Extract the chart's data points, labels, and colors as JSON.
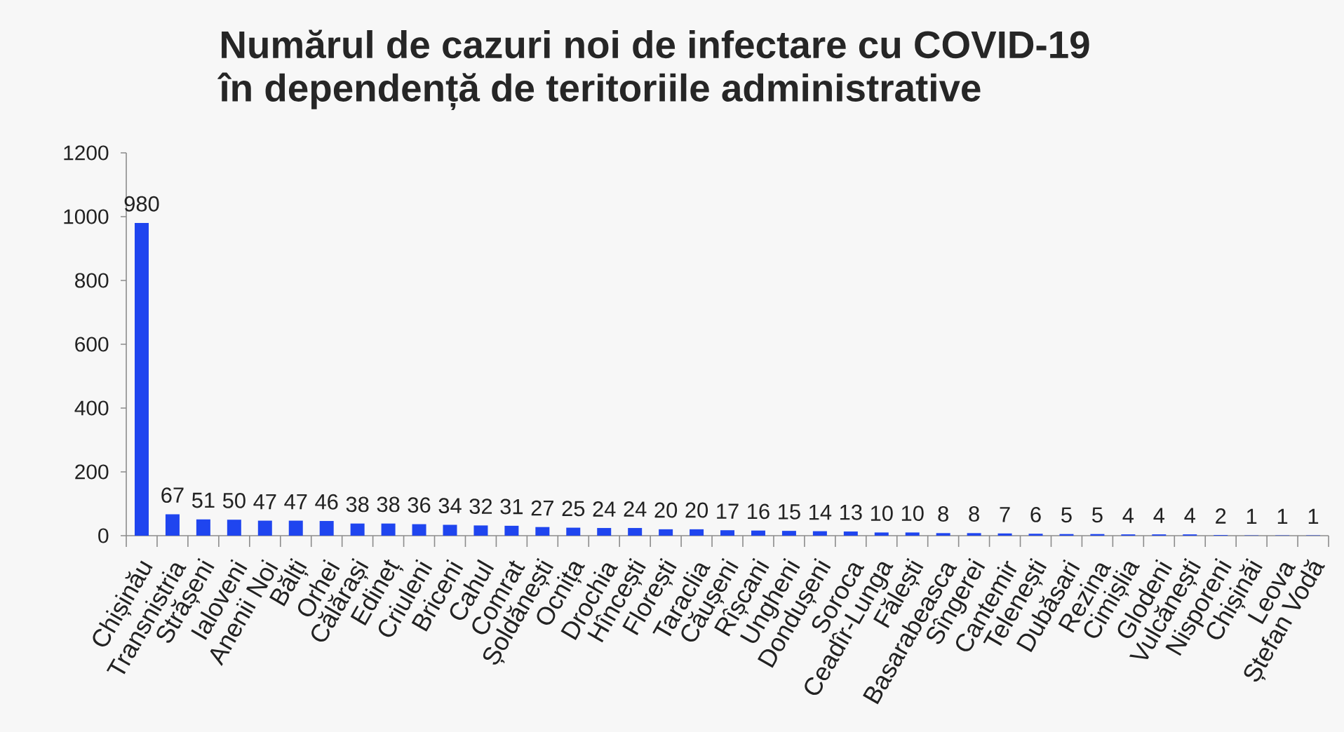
{
  "chart_data": {
    "type": "bar",
    "title": "Numărul de cazuri noi de infectare cu COVID-19 în dependență de teritoriile administrative",
    "categories": [
      "Chișinău",
      "Transnistria",
      "Strășeni",
      "Ialoveni",
      "Anenii Noi",
      "Bălți",
      "Orhei",
      "Călărași",
      "Edineț",
      "Criuleni",
      "Briceni",
      "Cahul",
      "Comrat",
      "Șoldănești",
      "Ocnița",
      "Drochia",
      "Hîncești",
      "Florești",
      "Taraclia",
      "Căușeni",
      "Rîșcani",
      "Ungheni",
      "Dondușeni",
      "Soroca",
      "Ceadîr-Lunga",
      "Fălești",
      "Basarabeasca",
      "Sîngerei",
      "Cantemir",
      "Telenești",
      "Dubăsari",
      "Rezina",
      "Cimișlia",
      "Glodeni",
      "Vulcănești",
      "Nisporeni",
      "Chișinăi",
      "Leova",
      "Ștefan Vodă"
    ],
    "values": [
      980,
      67,
      51,
      50,
      47,
      47,
      46,
      38,
      38,
      36,
      34,
      32,
      31,
      27,
      25,
      24,
      24,
      20,
      20,
      17,
      16,
      15,
      14,
      13,
      10,
      10,
      8,
      8,
      7,
      6,
      5,
      5,
      4,
      4,
      4,
      2,
      1,
      1,
      1
    ],
    "color": "#1f45ef",
    "ylim": [
      0,
      1200
    ],
    "yticks": [
      0,
      200,
      400,
      600,
      800,
      1000,
      1200
    ],
    "data_labels": true
  }
}
